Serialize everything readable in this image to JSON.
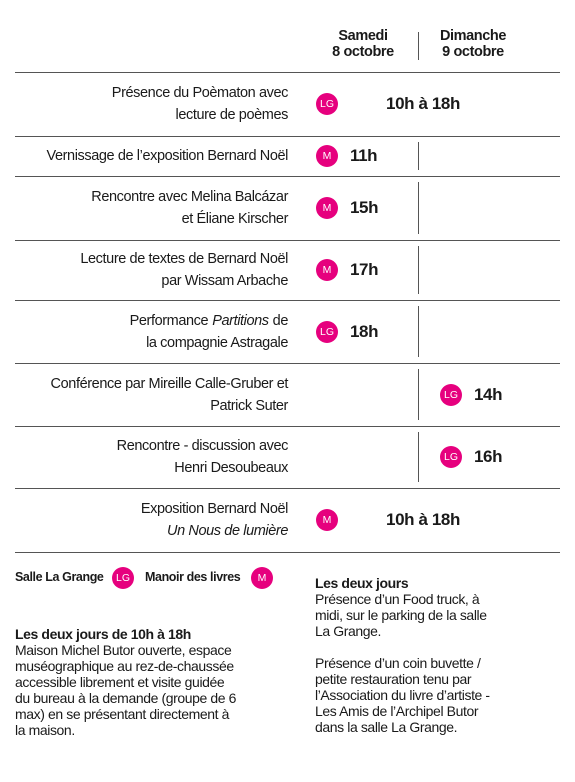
{
  "header": {
    "columns": [
      [
        "Samedi",
        "8 octobre"
      ],
      [
        "Dimanche",
        "9 octobre"
      ]
    ]
  },
  "rows": [
    {
      "lines": [
        [
          {
            "text": "Présence du Poèmaton avec"
          }
        ],
        [
          {
            "text": "lecture de poèmes"
          }
        ]
      ],
      "both": {
        "venue": "LG",
        "time": "10h à 18h"
      }
    },
    {
      "lines": [
        [
          {
            "text": "Vernissage de l’exposition Bernard Noël"
          }
        ]
      ],
      "saturday": {
        "venue": "M",
        "time": "11h"
      }
    },
    {
      "lines": [
        [
          {
            "text": "Rencontre avec Melina Balcázar"
          }
        ],
        [
          {
            "text": "et Éliane Kirscher"
          }
        ]
      ],
      "saturday": {
        "venue": "M",
        "time": "15h"
      }
    },
    {
      "lines": [
        [
          {
            "text": "Lecture de textes de Bernard Noël"
          }
        ],
        [
          {
            "text": "par Wissam Arbache"
          }
        ]
      ],
      "saturday": {
        "venue": "M",
        "time": "17h"
      }
    },
    {
      "lines": [
        [
          {
            "text": "Performance"
          },
          {
            "text": "Partitions",
            "style": "italic"
          },
          {
            "text": "de"
          }
        ],
        [
          {
            "text": "la compagnie Astragale"
          }
        ]
      ],
      "saturday": {
        "venue": "LG",
        "time": "18h"
      }
    },
    {
      "lines": [
        [
          {
            "text": "Conférence par Mireille Calle-Gruber et"
          }
        ],
        [
          {
            "text": "Patrick Suter"
          }
        ]
      ],
      "sunday": {
        "venue": "LG",
        "time": "14h"
      }
    },
    {
      "lines": [
        [
          {
            "text": "Rencontre - discussion avec"
          }
        ],
        [
          {
            "text": "Henri Desoubeaux"
          }
        ]
      ],
      "sunday": {
        "venue": "LG",
        "time": "16h"
      }
    },
    {
      "lines": [
        [
          {
            "text": "Exposition Bernard Noël"
          }
        ],
        [
          {
            "text": "Un Nous de lumière",
            "style": "italic"
          }
        ]
      ],
      "both": {
        "venue": "M",
        "time": "10h à 18h"
      }
    }
  ],
  "legend": [
    {
      "label": "Salle La Grange",
      "code": "LG"
    },
    {
      "label": "Manoir des livres",
      "code": "M"
    }
  ],
  "notes": [
    {
      "title": "Les deux jours de 10h à 18h",
      "lines": [
        "Maison Michel Butor ouverte, espace",
        "muséographique au rez-de-chaussée",
        "accessible librement et visite guidée",
        "du bureau à la demande (groupe de 6",
        "max) en se présentant directement à",
        "la maison."
      ]
    },
    {
      "title": "Les deux jours",
      "lines": [
        "Présence d’un Food truck, à",
        "midi, sur le parking de la salle",
        "La Grange.",
        "",
        "Présence d’un coin buvette /",
        "petite restauration tenu par",
        "l’Association du livre d’artiste -",
        "Les Amis de l’Archipel Butor",
        "dans la salle La Grange."
      ]
    }
  ]
}
